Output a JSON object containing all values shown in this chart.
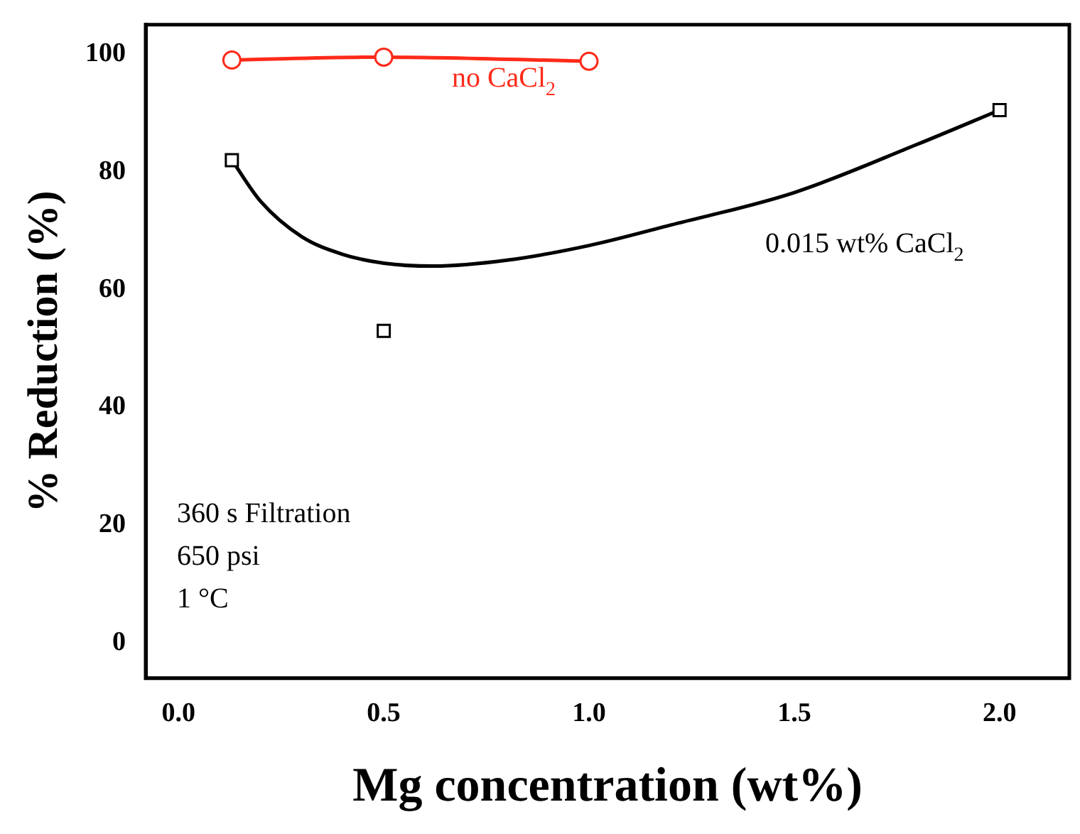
{
  "chart_data": {
    "type": "scatter",
    "xlabel": "Mg concentration (wt%)",
    "ylabel": "% Reduction (%)",
    "xlim": [
      -0.08,
      2.17
    ],
    "xticks": [
      {
        "value": 0,
        "label": "0.0"
      },
      0.5,
      {
        "value": 1,
        "label": "1.0"
      },
      1.5,
      {
        "value": 2,
        "label": "2.0"
      }
    ],
    "ylim": [
      -6,
      105
    ],
    "yticks": [
      0,
      20,
      40,
      60,
      80,
      100
    ],
    "grid": false,
    "legend": false,
    "series": [
      {
        "name": "no CaCl$_{2}$",
        "type": "line",
        "color": "#ff2a1a",
        "marker": "circle",
        "x": [
          0.13,
          0.5,
          1.0
        ],
        "values": [
          99,
          99.5,
          98.8
        ]
      },
      {
        "name": "0.015 wt% CaCl$_{2}$",
        "color": "#000000",
        "marker": "square",
        "x": [
          0.13,
          0.5,
          2.0
        ],
        "values": [
          82,
          53,
          90.5
        ]
      },
      {
        "type": "line",
        "color": "#000000",
        "marker": "none",
        "x": [
          0.13,
          0.2,
          0.3,
          0.4,
          0.5,
          0.62,
          0.8,
          1.0,
          1.2,
          1.5,
          1.8,
          2.0
        ],
        "values": [
          82,
          75,
          69,
          66,
          64.5,
          64,
          65,
          67.5,
          71,
          76.5,
          84.7,
          90.5
        ]
      }
    ],
    "annotations": [
      "360 s Filtration",
      "650 psi",
      "1 °C"
    ]
  }
}
